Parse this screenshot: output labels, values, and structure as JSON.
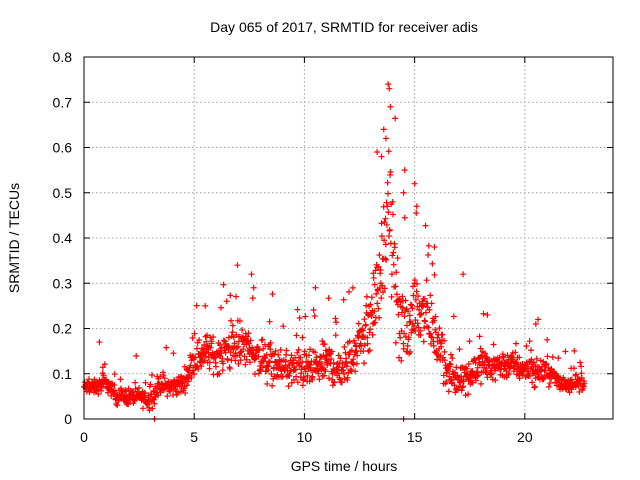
{
  "chart_data": {
    "type": "scatter",
    "title": "Day 065 of 2017, SRMTID for receiver adis",
    "xlabel": "GPS time / hours",
    "ylabel": "SRMTID / TECUs",
    "xlim": [
      0,
      24
    ],
    "ylim": [
      0,
      0.8
    ],
    "xticks": [
      0,
      5,
      10,
      15,
      20
    ],
    "yticks": [
      0,
      0.1,
      0.2,
      0.3,
      0.4,
      0.5,
      0.6,
      0.7,
      0.8
    ],
    "grid": true,
    "marker": "plus",
    "color": "#ff0000",
    "series": [
      {
        "name": "SRMTID",
        "profile": [
          [
            0.0,
            0.07
          ],
          [
            0.5,
            0.07
          ],
          [
            1.0,
            0.08
          ],
          [
            1.5,
            0.05
          ],
          [
            2.0,
            0.05
          ],
          [
            2.5,
            0.05
          ],
          [
            3.0,
            0.04
          ],
          [
            3.5,
            0.08
          ],
          [
            4.0,
            0.07
          ],
          [
            4.5,
            0.08
          ],
          [
            5.0,
            0.13
          ],
          [
            5.5,
            0.15
          ],
          [
            6.0,
            0.14
          ],
          [
            6.5,
            0.15
          ],
          [
            7.0,
            0.16
          ],
          [
            7.5,
            0.16
          ],
          [
            8.0,
            0.13
          ],
          [
            8.5,
            0.12
          ],
          [
            9.0,
            0.11
          ],
          [
            9.5,
            0.11
          ],
          [
            10.0,
            0.11
          ],
          [
            10.5,
            0.11
          ],
          [
            11.0,
            0.13
          ],
          [
            11.5,
            0.11
          ],
          [
            12.0,
            0.12
          ],
          [
            12.5,
            0.17
          ],
          [
            13.0,
            0.22
          ],
          [
            13.5,
            0.33
          ],
          [
            13.8,
            0.43
          ],
          [
            14.0,
            0.38
          ],
          [
            14.3,
            0.22
          ],
          [
            14.6,
            0.19
          ],
          [
            15.0,
            0.25
          ],
          [
            15.5,
            0.24
          ],
          [
            16.0,
            0.17
          ],
          [
            16.5,
            0.1
          ],
          [
            17.0,
            0.09
          ],
          [
            17.5,
            0.1
          ],
          [
            18.0,
            0.12
          ],
          [
            18.5,
            0.12
          ],
          [
            19.0,
            0.12
          ],
          [
            19.5,
            0.12
          ],
          [
            20.0,
            0.11
          ],
          [
            20.5,
            0.1
          ],
          [
            21.0,
            0.11
          ],
          [
            21.5,
            0.08
          ],
          [
            22.0,
            0.08
          ],
          [
            22.5,
            0.08
          ],
          [
            22.7,
            0.08
          ]
        ],
        "spread": [
          [
            0.0,
            0.02
          ],
          [
            4.5,
            0.03
          ],
          [
            5.0,
            0.05
          ],
          [
            8.0,
            0.06
          ],
          [
            10.0,
            0.05
          ],
          [
            12.5,
            0.07
          ],
          [
            13.5,
            0.13
          ],
          [
            14.0,
            0.14
          ],
          [
            15.0,
            0.1
          ],
          [
            16.5,
            0.05
          ],
          [
            20.0,
            0.04
          ],
          [
            22.7,
            0.025
          ]
        ],
        "outliers": [
          [
            0.7,
            0.17
          ],
          [
            3.2,
            0.0
          ],
          [
            5.5,
            0.25
          ],
          [
            7.6,
            0.32
          ],
          [
            7.7,
            0.29
          ],
          [
            10.5,
            0.29
          ],
          [
            13.8,
            0.74
          ],
          [
            13.85,
            0.73
          ],
          [
            13.9,
            0.69
          ],
          [
            13.6,
            0.64
          ],
          [
            13.7,
            0.62
          ],
          [
            13.3,
            0.59
          ],
          [
            13.5,
            0.58
          ],
          [
            14.5,
            0.0
          ],
          [
            14.55,
            0.55
          ],
          [
            14.5,
            0.5
          ],
          [
            15.0,
            0.52
          ],
          [
            15.1,
            0.47
          ],
          [
            15.9,
            0.38
          ],
          [
            17.2,
            0.32
          ],
          [
            18.3,
            0.23
          ],
          [
            20.5,
            0.21
          ],
          [
            20.6,
            0.22
          ]
        ],
        "point_count": 1400
      }
    ]
  }
}
